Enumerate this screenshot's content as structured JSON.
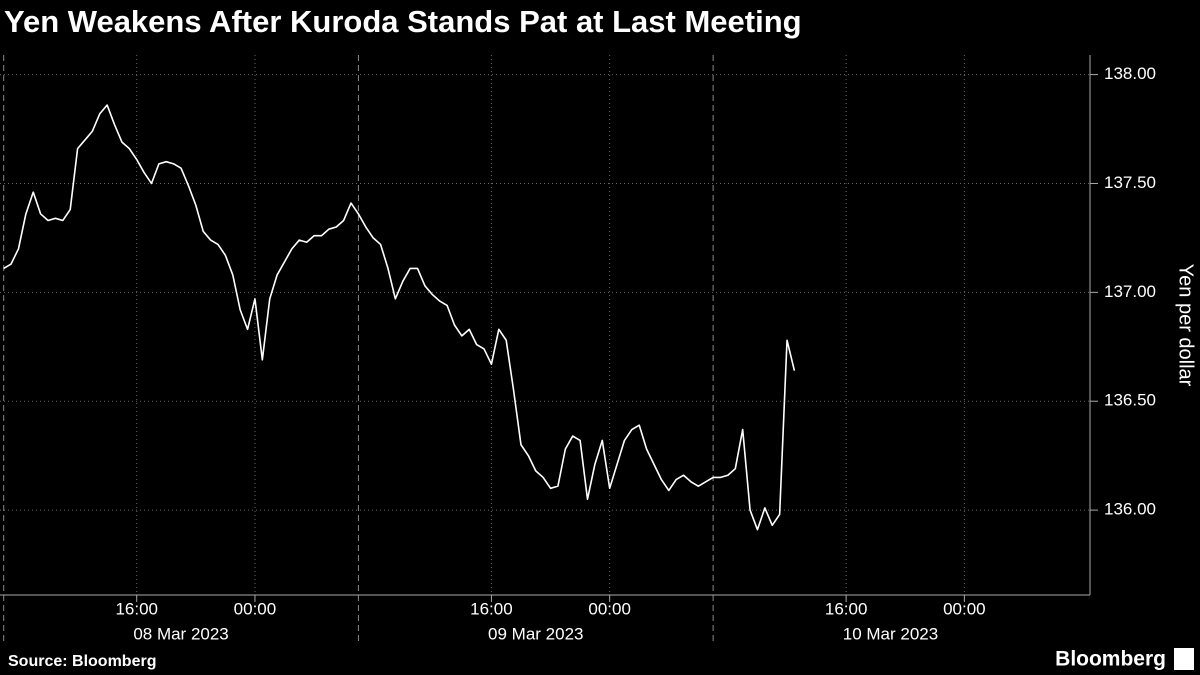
{
  "chart_data": {
    "type": "line",
    "title": "Yen Weakens After Kuroda Stands Pat at Last Meeting",
    "y_label": "Yen per dollar",
    "source": "Source: Bloomberg",
    "logo": "Bloomberg",
    "x": [
      "2023-03-08T07:00",
      "2023-03-08T07:30",
      "2023-03-08T08:00",
      "2023-03-08T08:30",
      "2023-03-08T09:00",
      "2023-03-08T09:30",
      "2023-03-08T10:00",
      "2023-03-08T10:30",
      "2023-03-08T11:00",
      "2023-03-08T11:30",
      "2023-03-08T12:00",
      "2023-03-08T12:30",
      "2023-03-08T13:00",
      "2023-03-08T13:30",
      "2023-03-08T14:00",
      "2023-03-08T14:30",
      "2023-03-08T15:00",
      "2023-03-08T15:30",
      "2023-03-08T16:00",
      "2023-03-08T16:30",
      "2023-03-08T17:00",
      "2023-03-08T17:30",
      "2023-03-08T18:00",
      "2023-03-08T18:30",
      "2023-03-08T19:00",
      "2023-03-08T19:30",
      "2023-03-08T20:00",
      "2023-03-08T20:30",
      "2023-03-08T21:00",
      "2023-03-08T21:30",
      "2023-03-08T22:00",
      "2023-03-08T22:30",
      "2023-03-08T23:00",
      "2023-03-08T23:30",
      "2023-03-09T00:00",
      "2023-03-09T00:30",
      "2023-03-09T01:00",
      "2023-03-09T01:30",
      "2023-03-09T02:00",
      "2023-03-09T02:30",
      "2023-03-09T03:00",
      "2023-03-09T03:30",
      "2023-03-09T04:00",
      "2023-03-09T04:30",
      "2023-03-09T05:00",
      "2023-03-09T05:30",
      "2023-03-09T06:00",
      "2023-03-09T06:30",
      "2023-03-09T07:00",
      "2023-03-09T07:30",
      "2023-03-09T08:00",
      "2023-03-09T08:30",
      "2023-03-09T09:00",
      "2023-03-09T09:30",
      "2023-03-09T10:00",
      "2023-03-09T10:30",
      "2023-03-09T11:00",
      "2023-03-09T11:30",
      "2023-03-09T12:00",
      "2023-03-09T12:30",
      "2023-03-09T13:00",
      "2023-03-09T13:30",
      "2023-03-09T14:00",
      "2023-03-09T14:30",
      "2023-03-09T15:00",
      "2023-03-09T15:30",
      "2023-03-09T16:00",
      "2023-03-09T16:30",
      "2023-03-09T17:00",
      "2023-03-09T17:30",
      "2023-03-09T18:00",
      "2023-03-09T18:30",
      "2023-03-09T19:00",
      "2023-03-09T19:30",
      "2023-03-09T20:00",
      "2023-03-09T20:30",
      "2023-03-09T21:00",
      "2023-03-09T21:30",
      "2023-03-09T22:00",
      "2023-03-09T22:30",
      "2023-03-09T23:00",
      "2023-03-09T23:30",
      "2023-03-10T00:00",
      "2023-03-10T00:30",
      "2023-03-10T01:00",
      "2023-03-10T01:30",
      "2023-03-10T02:00",
      "2023-03-10T02:30",
      "2023-03-10T03:00",
      "2023-03-10T03:30",
      "2023-03-10T04:00",
      "2023-03-10T04:30",
      "2023-03-10T05:00",
      "2023-03-10T05:30",
      "2023-03-10T06:00",
      "2023-03-10T06:30",
      "2023-03-10T07:00",
      "2023-03-10T07:30",
      "2023-03-10T08:00",
      "2023-03-10T08:30",
      "2023-03-10T09:00",
      "2023-03-10T09:30",
      "2023-03-10T10:00",
      "2023-03-10T10:30",
      "2023-03-10T11:00",
      "2023-03-10T11:30",
      "2023-03-10T12:00",
      "2023-03-10T12:30"
    ],
    "series": [
      {
        "color": "#ffffff",
        "values": [
          137.11,
          137.13,
          137.2,
          137.36,
          137.46,
          137.36,
          137.33,
          137.34,
          137.33,
          137.38,
          137.66,
          137.7,
          137.74,
          137.82,
          137.86,
          137.77,
          137.69,
          137.66,
          137.61,
          137.55,
          137.5,
          137.59,
          137.6,
          137.59,
          137.57,
          137.49,
          137.4,
          137.28,
          137.24,
          137.22,
          137.17,
          137.08,
          136.92,
          136.83,
          136.97,
          136.69,
          136.97,
          137.08,
          137.14,
          137.2,
          137.24,
          137.23,
          137.26,
          137.26,
          137.29,
          137.3,
          137.33,
          137.41,
          137.36,
          137.3,
          137.25,
          137.22,
          137.11,
          136.97,
          137.05,
          137.11,
          137.11,
          137.03,
          136.99,
          136.96,
          136.94,
          136.85,
          136.8,
          136.83,
          136.76,
          136.74,
          136.67,
          136.83,
          136.78,
          136.55,
          136.3,
          136.25,
          136.18,
          136.15,
          136.1,
          136.11,
          136.28,
          136.34,
          136.32,
          136.05,
          136.21,
          136.32,
          136.1,
          136.21,
          136.32,
          136.37,
          136.39,
          136.28,
          136.21,
          136.14,
          136.09,
          136.14,
          136.16,
          136.13,
          136.11,
          136.13,
          136.15,
          136.15,
          136.16,
          136.19,
          136.37,
          136.0,
          135.91,
          136.01,
          135.93,
          135.98,
          136.78,
          136.64
        ]
      }
    ],
    "xlim": [
      "2023-03-08T06:45",
      "2023-03-11T08:30"
    ],
    "xticks": [
      {
        "value": "2023-03-08T16:00",
        "label": "16:00"
      },
      {
        "value": "2023-03-09T00:00",
        "label": "00:00"
      },
      {
        "value": "2023-03-09T16:00",
        "label": "16:00"
      },
      {
        "value": "2023-03-10T00:00",
        "label": "00:00"
      },
      {
        "value": "2023-03-10T16:00",
        "label": "16:00"
      },
      {
        "value": "2023-03-11T00:00",
        "label": "00:00"
      }
    ],
    "day_ticks": [
      {
        "value": "2023-03-08T07:00",
        "label": "08 Mar 2023"
      },
      {
        "value": "2023-03-09T07:00",
        "label": "09 Mar 2023"
      },
      {
        "value": "2023-03-10T07:00",
        "label": "10 Mar 2023"
      }
    ],
    "ylim": [
      135.61,
      138.09
    ],
    "yticks": [
      {
        "value": 136,
        "label": "136.00"
      },
      {
        "value": 136.5,
        "label": "136.50"
      },
      {
        "value": 137,
        "label": "137.00"
      },
      {
        "value": 137.5,
        "label": "137.50"
      },
      {
        "value": 138,
        "label": "138.00"
      }
    ],
    "y_axis_side": "right",
    "grid": true
  }
}
